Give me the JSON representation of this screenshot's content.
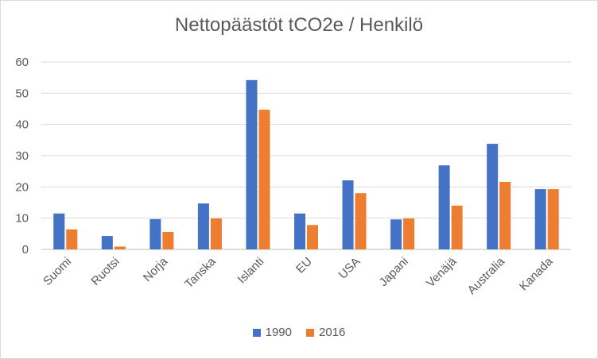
{
  "chart_data": {
    "type": "bar",
    "title": "Nettopäästöt tCO2e / Henkilö",
    "xlabel": "",
    "ylabel": "",
    "ylim": [
      0,
      60
    ],
    "yticks": [
      0,
      10,
      20,
      30,
      40,
      50,
      60
    ],
    "grid": true,
    "legend_position": "bottom",
    "categories": [
      "Suomi",
      "Ruotsi",
      "Norja",
      "Tanska",
      "Islanti",
      "EU",
      "USA",
      "Japani",
      "Venäjä",
      "Australia",
      "Kanada"
    ],
    "series": [
      {
        "name": "1990",
        "color": "#4472c4",
        "values": [
          11.5,
          4.3,
          9.7,
          14.7,
          54.2,
          11.5,
          22.1,
          9.6,
          26.9,
          33.8,
          19.3
        ]
      },
      {
        "name": "2016",
        "color": "#ed7d31",
        "values": [
          6.4,
          0.9,
          5.6,
          9.9,
          44.7,
          7.8,
          18.0,
          9.9,
          14.0,
          21.6,
          19.3
        ]
      }
    ]
  }
}
